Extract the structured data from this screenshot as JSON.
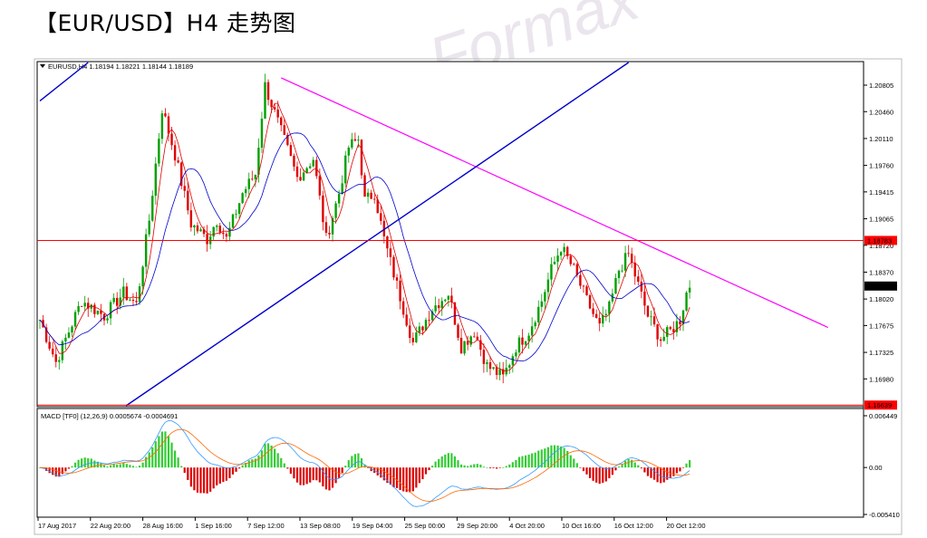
{
  "page": {
    "title": "【EUR/USD】H4 走势图",
    "watermark": "Formax"
  },
  "chart_data": {
    "type": "candlestick",
    "symbol_info": "EURUSD,H4  1.18194 1.18221 1.18144 1.18189",
    "current_price": "1.18189",
    "hline_labels": [
      "1.18783",
      "1.16639"
    ],
    "price_ticks": [
      "1.20805",
      "1.20460",
      "1.20110",
      "1.19760",
      "1.19415",
      "1.19065",
      "1.18720",
      "1.18370",
      "1.18020",
      "1.17675",
      "1.17325",
      "1.16980"
    ],
    "macd_label": "MACD [TF0] (12,26,9) 0.0005674 -0.0004691",
    "macd_ticks": [
      "0.006449",
      "0.00",
      "-0.005410"
    ],
    "time_ticks": [
      "17 Aug 2017",
      "22 Aug 20:00",
      "28 Aug 16:00",
      "1 Sep 16:00",
      "7 Sep 12:00",
      "13 Sep 08:00",
      "19 Sep 04:00",
      "25 Sep 00:00",
      "29 Sep 20:00",
      "4 Oct 20:00",
      "10 Oct 16:00",
      "16 Oct 12:00",
      "20 Oct 12:00"
    ],
    "price_range": [
      1.1663,
      1.211
    ],
    "macd_range": [
      -0.00541,
      0.00645
    ],
    "price_path": [
      [
        0,
        1.1775
      ],
      [
        5,
        1.172
      ],
      [
        13,
        1.18
      ],
      [
        20,
        1.178
      ],
      [
        26,
        1.181
      ],
      [
        30,
        1.1795
      ],
      [
        34,
        1.1905
      ],
      [
        38,
        1.205
      ],
      [
        42,
        1.199
      ],
      [
        47,
        1.19
      ],
      [
        52,
        1.188
      ],
      [
        55,
        1.1905
      ],
      [
        58,
        1.188
      ],
      [
        63,
        1.194
      ],
      [
        67,
        1.1965
      ],
      [
        70,
        1.208
      ],
      [
        75,
        1.202
      ],
      [
        80,
        1.196
      ],
      [
        85,
        1.1985
      ],
      [
        89,
        1.188
      ],
      [
        93,
        1.194
      ],
      [
        96,
        1.2
      ],
      [
        99,
        1.201
      ],
      [
        101,
        1.193
      ],
      [
        104,
        1.194
      ],
      [
        107,
        1.188
      ],
      [
        111,
        1.182
      ],
      [
        116,
        1.1745
      ],
      [
        122,
        1.179
      ],
      [
        127,
        1.181
      ],
      [
        131,
        1.174
      ],
      [
        135,
        1.176
      ],
      [
        139,
        1.1715
      ],
      [
        144,
        1.17
      ],
      [
        148,
        1.174
      ],
      [
        152,
        1.176
      ],
      [
        156,
        1.18
      ],
      [
        159,
        1.184
      ],
      [
        162,
        1.187
      ],
      [
        166,
        1.184
      ],
      [
        170,
        1.18
      ],
      [
        174,
        1.1765
      ],
      [
        177,
        1.179
      ],
      [
        180,
        1.184
      ],
      [
        183,
        1.186
      ],
      [
        186,
        1.182
      ],
      [
        189,
        1.178
      ],
      [
        193,
        1.175
      ],
      [
        196,
        1.176
      ],
      [
        199,
        1.1775
      ],
      [
        201,
        1.181
      ],
      [
        202,
        1.182
      ]
    ],
    "lines": {
      "resistance_trendline": {
        "from": [
          75,
          1.209
        ],
        "to": [
          245,
          1.1765
        ],
        "color": "#ff00ff"
      },
      "upper_channel": {
        "from": [
          0,
          1.206
        ],
        "to": [
          15,
          1.211
        ],
        "color": "#0000cc"
      },
      "support_trendline": {
        "from": [
          24,
          1.1655
        ],
        "to": [
          183,
          1.211
        ],
        "color": "#0000cc"
      },
      "h_resistance": {
        "value": 1.18783,
        "color": "#ff0000"
      },
      "h_support": {
        "value": 1.16639,
        "color": "#ff0000"
      }
    },
    "colors": {
      "bull": "#00a000",
      "bear": "#e00000",
      "ma_fast": "#e00000",
      "ma_slow": "#0000cc",
      "macd_line": "#3399ff",
      "signal_line": "#ff6600",
      "hist_up": "#33cc33",
      "hist_down": "#dd0000"
    },
    "grid": false
  }
}
